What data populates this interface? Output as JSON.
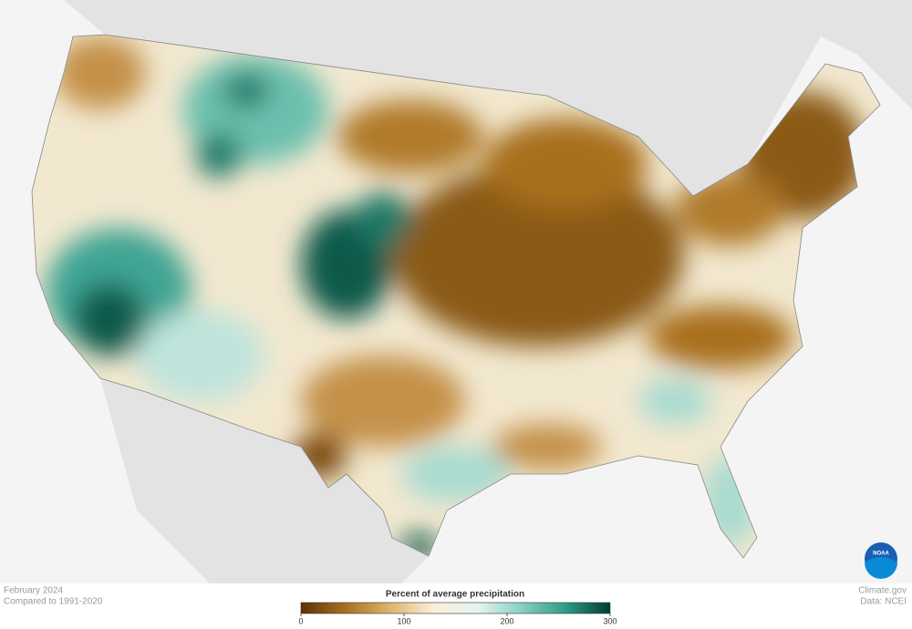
{
  "caption": {
    "date": "February 2024",
    "baseline": "Compared to 1991-2020"
  },
  "legend": {
    "title": "Percent of average precipitation",
    "min": 0,
    "max": 300,
    "ticks": [
      0,
      100,
      200,
      300
    ],
    "colors": [
      "#5c3405",
      "#a8701e",
      "#dcb46a",
      "#f8f0dc",
      "#e6f4f1",
      "#88cfc1",
      "#2e9a88",
      "#003d33"
    ]
  },
  "credits": {
    "source": "Climate.gov",
    "data": "Data: NCEI"
  },
  "logo": "NOAA"
}
